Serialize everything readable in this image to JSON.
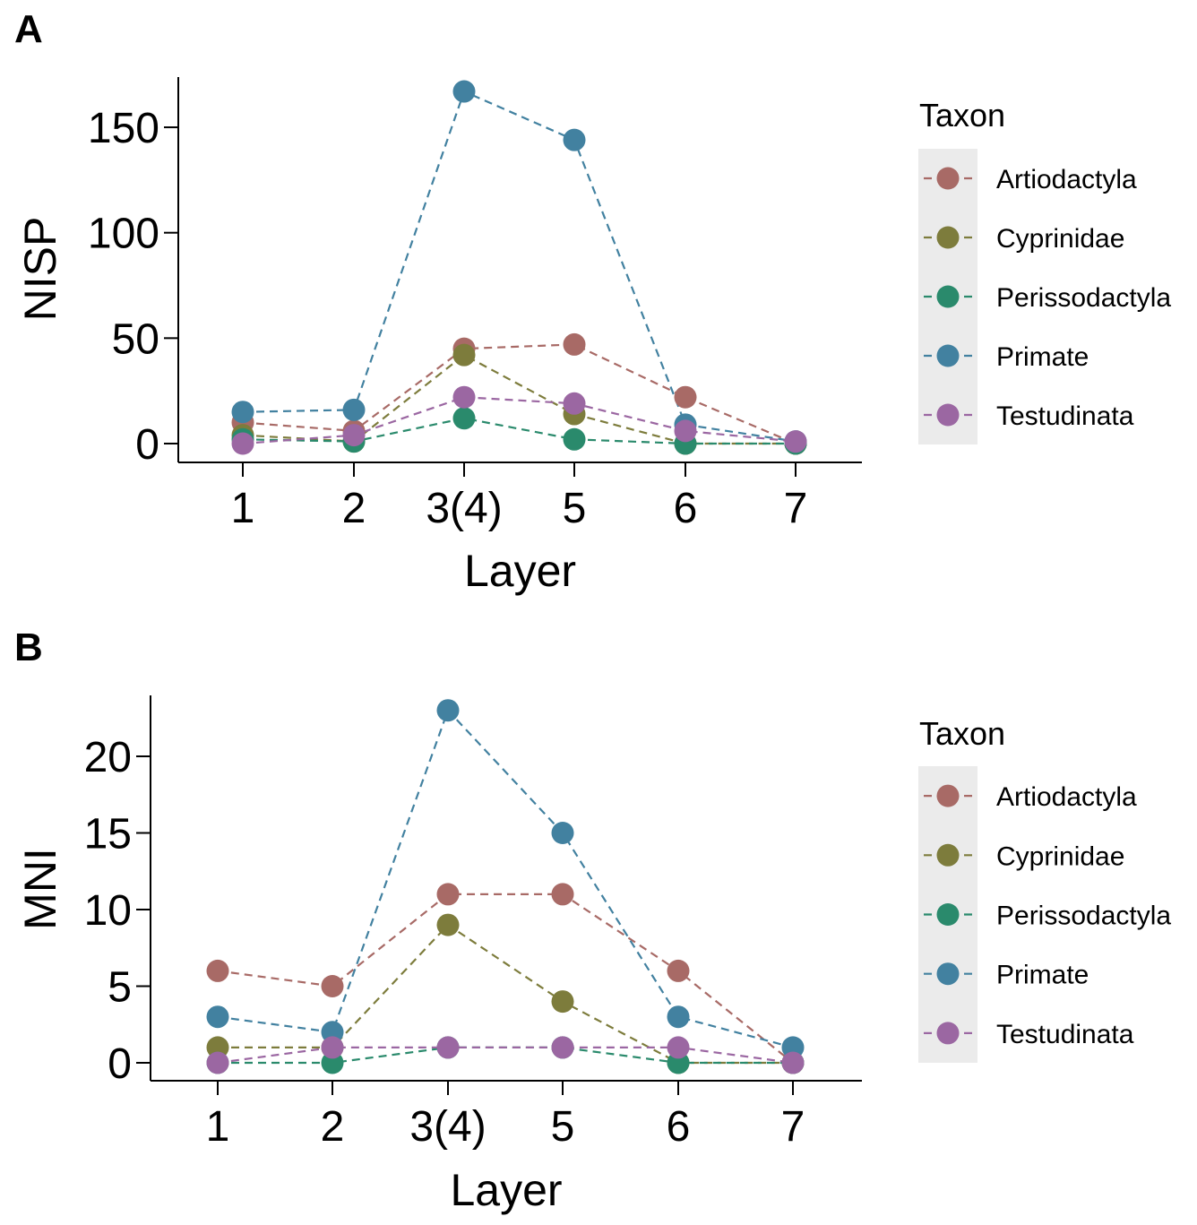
{
  "chart_data": [
    {
      "type": "line",
      "panel": "A",
      "title": "",
      "xlabel": "Layer",
      "ylabel": "NISP",
      "categories": [
        "1",
        "2",
        "3(4)",
        "5",
        "6",
        "7"
      ],
      "yticks": [
        0,
        50,
        100,
        150
      ],
      "ylim": [
        -8,
        175
      ],
      "legend_title": "Taxon",
      "legend_position": "right",
      "series": [
        {
          "name": "Artiodactyla",
          "color": "#A86A66",
          "values": [
            10,
            6,
            45,
            47,
            22,
            0
          ]
        },
        {
          "name": "Cyprinidae",
          "color": "#7D7C3C",
          "values": [
            4,
            1,
            42,
            14,
            0,
            0
          ]
        },
        {
          "name": "Perissodactyla",
          "color": "#2A8A6C",
          "values": [
            2,
            1,
            12,
            2,
            0,
            0
          ]
        },
        {
          "name": "Primate",
          "color": "#4281A0",
          "values": [
            15,
            16,
            167,
            144,
            9,
            1
          ]
        },
        {
          "name": "Testudinata",
          "color": "#9B67A2",
          "values": [
            0,
            4,
            22,
            19,
            6,
            1
          ]
        }
      ]
    },
    {
      "type": "line",
      "panel": "B",
      "title": "",
      "xlabel": "Layer",
      "ylabel": "MNI",
      "categories": [
        "1",
        "2",
        "3(4)",
        "5",
        "6",
        "7"
      ],
      "yticks": [
        0,
        5,
        10,
        15,
        20
      ],
      "ylim": [
        -1.2,
        24
      ],
      "legend_title": "Taxon",
      "legend_position": "right",
      "series": [
        {
          "name": "Artiodactyla",
          "color": "#A86A66",
          "values": [
            6,
            5,
            11,
            11,
            6,
            0
          ]
        },
        {
          "name": "Cyprinidae",
          "color": "#7D7C3C",
          "values": [
            1,
            1,
            9,
            4,
            0,
            0
          ]
        },
        {
          "name": "Perissodactyla",
          "color": "#2A8A6C",
          "values": [
            0,
            0,
            1,
            1,
            0,
            0
          ]
        },
        {
          "name": "Primate",
          "color": "#4281A0",
          "values": [
            3,
            2,
            23,
            15,
            3,
            1
          ]
        },
        {
          "name": "Testudinata",
          "color": "#9B67A2",
          "values": [
            0,
            1,
            1,
            1,
            1,
            0
          ]
        }
      ]
    }
  ]
}
